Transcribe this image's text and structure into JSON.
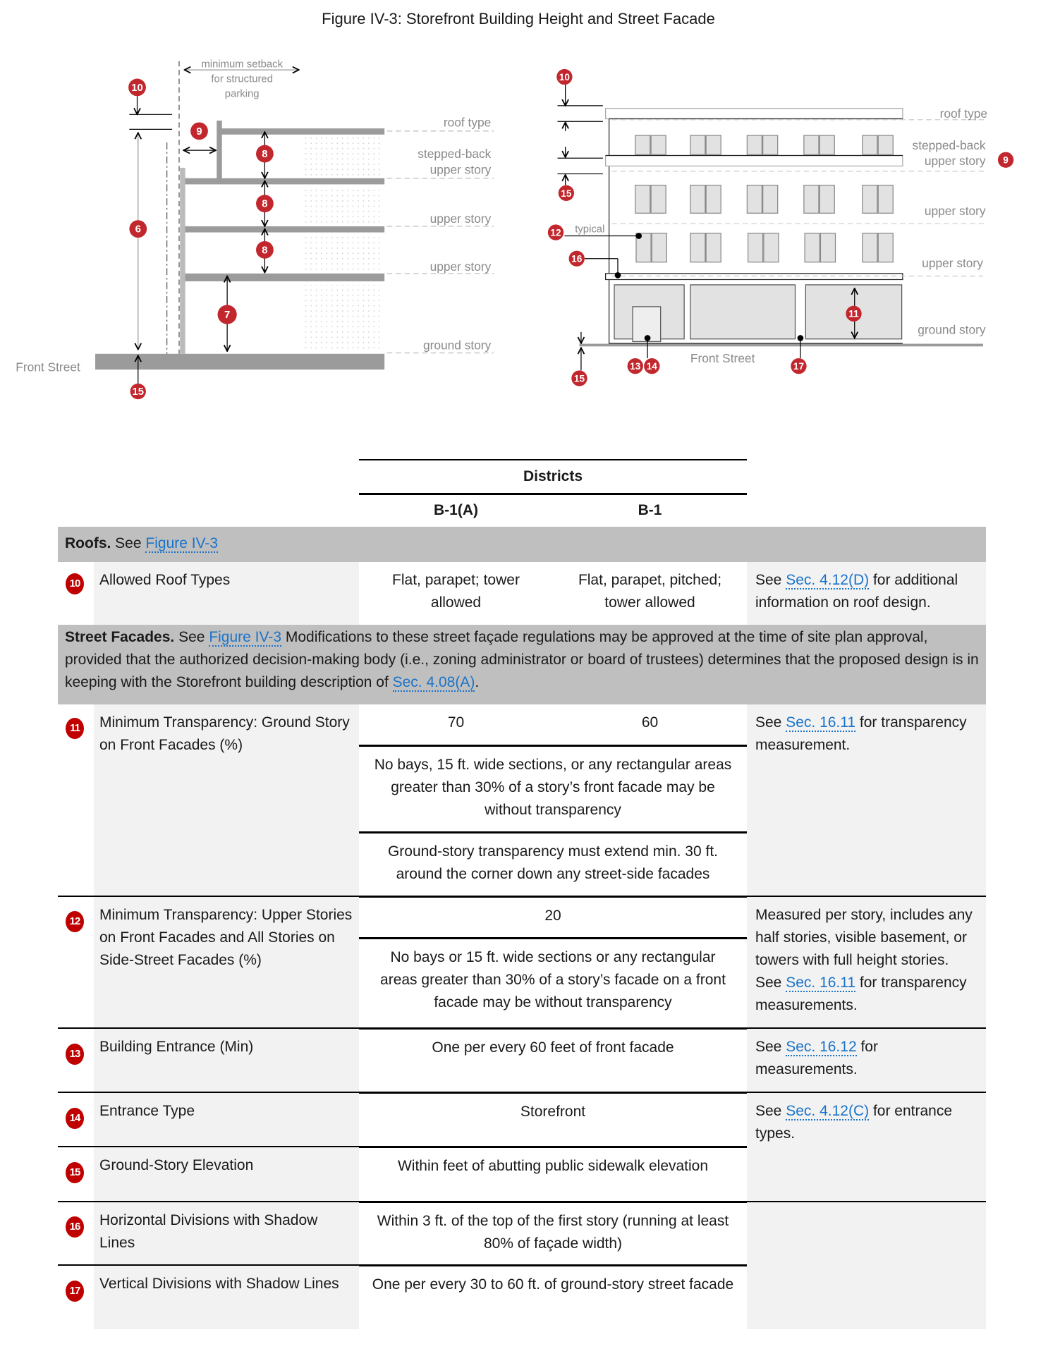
{
  "figure": {
    "title": "Figure IV-3: Storefront Building Height and Street Facade",
    "left": {
      "setback_label": [
        "minimum setback",
        "for structured",
        "parking"
      ],
      "roof_type": "roof type",
      "stepped_back": [
        "stepped-back",
        "upper story"
      ],
      "upper_story_1": "upper story",
      "upper_story_2": "upper story",
      "ground_story": "ground story",
      "street": "Front Street",
      "badges": {
        "b10": "10",
        "b6": "6",
        "b15": "15",
        "b9": "9",
        "b8a": "8",
        "b8b": "8",
        "b8c": "8",
        "b7": "7"
      }
    },
    "right": {
      "roof_type": "roof type",
      "stepped_back": [
        "stepped-back",
        "upper story"
      ],
      "upper_story_1": "upper story",
      "upper_story_2": "upper story",
      "ground_story": "ground story",
      "typical": "typical",
      "street": "Front Street",
      "badges": {
        "b10": "10",
        "b15a": "15",
        "b12": "12",
        "b16": "16",
        "b9": "9",
        "b11": "11",
        "b13": "13",
        "b14": "14",
        "b17": "17",
        "b15b": "15"
      }
    },
    "badge_color": "#c1272d"
  },
  "table": {
    "districts_header": "Districts",
    "columns": [
      "B-1(A)",
      "B-1"
    ],
    "link_color": "#1a73c9",
    "roofs": {
      "title": "Roofs.",
      "see": "See",
      "link": "Figure IV-3"
    },
    "row10": {
      "badge": "10",
      "label": "Allowed Roof Types",
      "b1a": "Flat, parapet; tower allowed",
      "b1": "Flat, parapet, pitched; tower allowed",
      "note_pre": "See",
      "note_link": "Sec. 4.12(D)",
      "note_post": "for additional information on roof design."
    },
    "facades": {
      "title": "Street Facades.",
      "see": "See",
      "link": "Figure IV-3",
      "text": "Modifications to these street façade regulations may be approved at the time of site plan approval, provided that the authorized decision-making body (i.e., zoning administrator or board of trustees) determines that the proposed design is in keeping with the Storefront building description of",
      "link2": "Sec. 4.08(A)",
      "end": "."
    },
    "row11": {
      "badge": "11",
      "label": "Minimum Transparency: Ground Story on Front Facades (%)",
      "b1a": "70",
      "b1": "60",
      "sub1": "No bays, 15 ft. wide sections, or any rectangular areas greater than 30% of a story’s front facade may be without transparency",
      "sub2": "Ground-story transparency must extend min. 30 ft. around the corner down any street-side facades",
      "note_pre": "See",
      "note_link": "Sec. 16.11",
      "note_post": "for transparency measurement."
    },
    "row12": {
      "badge": "12",
      "label": "Minimum Transparency: Upper Stories on Front Facades and All Stories on Side-Street Facades (%)",
      "value": "20",
      "sub1": "No bays or 15 ft. wide sections or any rectangular areas greater than 30% of a story’s facade on a front facade may be without transparency",
      "note_pre": "Measured per story, includes any half stories, visible basement, or towers with full height stories. See",
      "note_link": "Sec. 16.11",
      "note_post": "for transparency measurements."
    },
    "row13": {
      "badge": "13",
      "label": "Building Entrance (Min)",
      "value": "One per every 60 feet of front facade",
      "note_pre": "See",
      "note_link": "Sec. 16.12",
      "note_post": "for measurements."
    },
    "row14": {
      "badge": "14",
      "label": "Entrance Type",
      "value": "Storefront",
      "note_pre": "See",
      "note_link": "Sec. 4.12(C)",
      "note_post": "for entrance types."
    },
    "row15": {
      "badge": "15",
      "label": "Ground-Story Elevation",
      "value": "Within feet of abutting public sidewalk elevation"
    },
    "row16": {
      "badge": "16",
      "label": "Horizontal Divisions with Shadow Lines",
      "value": "Within 3 ft. of the top of the first story (running at least 80% of façade width)"
    },
    "row17": {
      "badge": "17",
      "label": "Vertical Divisions with Shadow Lines",
      "value": "One per every 30 to 60 ft. of ground-story street facade"
    }
  }
}
